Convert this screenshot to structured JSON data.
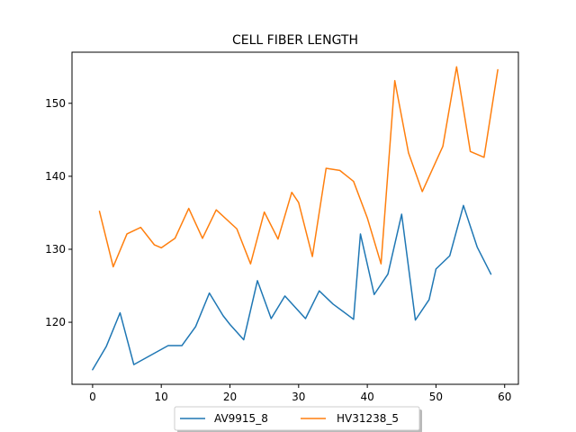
{
  "chart_data": {
    "type": "line",
    "title": "CELL FIBER LENGTH",
    "xlabel": "",
    "ylabel": "",
    "xlim": [
      -3,
      62
    ],
    "ylim": [
      111.5,
      157
    ],
    "xticks": [
      0,
      10,
      20,
      30,
      40,
      50,
      60
    ],
    "yticks": [
      120,
      130,
      140,
      150
    ],
    "grid": false,
    "legend_placement": "bottom-center",
    "series": [
      {
        "name": "AV9915_8",
        "color": "#1f77b4",
        "x": [
          0,
          2,
          4,
          6,
          11,
          13,
          15,
          17,
          19,
          20,
          22,
          24,
          26,
          28,
          31,
          33,
          35,
          38,
          39,
          41,
          43,
          45,
          47,
          49,
          50,
          52,
          54,
          56,
          58
        ],
        "y": [
          113.5,
          116.7,
          121.3,
          114.2,
          116.8,
          116.8,
          119.4,
          124.0,
          120.9,
          119.7,
          117.6,
          125.7,
          120.5,
          123.6,
          120.5,
          124.3,
          122.5,
          120.4,
          132.1,
          123.8,
          126.6,
          134.8,
          120.3,
          123.1,
          127.3,
          129.1,
          136.0,
          130.3,
          126.6
        ]
      },
      {
        "name": "HV31238_5",
        "color": "#ff7f0e",
        "x": [
          1,
          3,
          5,
          7,
          9,
          10,
          12,
          14,
          16,
          18,
          21,
          23,
          25,
          27,
          29,
          30,
          32,
          34,
          36,
          38,
          40,
          42,
          44,
          46,
          48,
          51,
          53,
          55,
          57,
          59
        ],
        "y": [
          135.2,
          127.6,
          132.1,
          133.0,
          130.6,
          130.2,
          131.5,
          135.6,
          131.5,
          135.4,
          132.8,
          128.0,
          135.1,
          131.4,
          137.8,
          136.4,
          129.0,
          141.1,
          140.8,
          139.3,
          134.3,
          128.0,
          153.1,
          143.2,
          137.9,
          144.1,
          155.0,
          143.4,
          142.6,
          154.6
        ]
      }
    ]
  }
}
